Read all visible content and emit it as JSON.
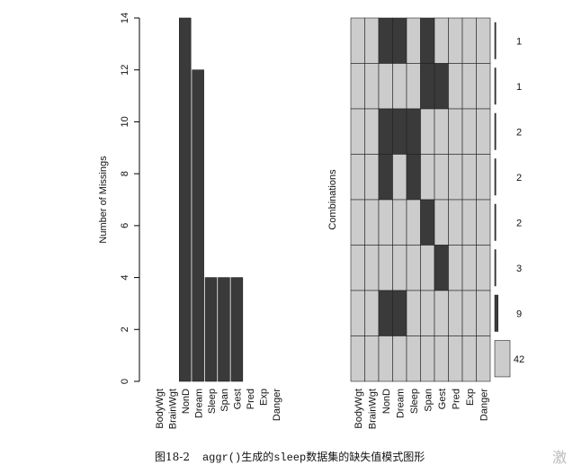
{
  "chart_data": [
    {
      "type": "bar",
      "ylabel": "Number of Missings",
      "categories": [
        "BodyWgt",
        "BrainWgt",
        "NonD",
        "Dream",
        "Sleep",
        "Span",
        "Gest",
        "Pred",
        "Exp",
        "Danger"
      ],
      "values": [
        0,
        0,
        14,
        12,
        4,
        4,
        4,
        0,
        0,
        0
      ],
      "color": "#3a3a3a",
      "ylim": [
        0,
        14
      ],
      "yticks": [
        0,
        2,
        4,
        6,
        8,
        10,
        12,
        14
      ]
    },
    {
      "type": "combinations",
      "ylabel": "Combinations",
      "categories": [
        "BodyWgt",
        "BrainWgt",
        "NonD",
        "Dream",
        "Sleep",
        "Span",
        "Gest",
        "Pred",
        "Exp",
        "Danger"
      ],
      "missing_color": "#3a3a3a",
      "present_color": "#cccccc",
      "rows": [
        {
          "pattern": [
            0,
            0,
            1,
            1,
            0,
            1,
            0,
            0,
            0,
            0
          ],
          "count": 1
        },
        {
          "pattern": [
            0,
            0,
            0,
            0,
            0,
            1,
            1,
            0,
            0,
            0
          ],
          "count": 1
        },
        {
          "pattern": [
            0,
            0,
            1,
            1,
            1,
            0,
            0,
            0,
            0,
            0
          ],
          "count": 2
        },
        {
          "pattern": [
            0,
            0,
            1,
            0,
            1,
            0,
            0,
            0,
            0,
            0
          ],
          "count": 2
        },
        {
          "pattern": [
            0,
            0,
            0,
            0,
            0,
            1,
            0,
            0,
            0,
            0
          ],
          "count": 2
        },
        {
          "pattern": [
            0,
            0,
            0,
            0,
            0,
            0,
            1,
            0,
            0,
            0
          ],
          "count": 3
        },
        {
          "pattern": [
            0,
            0,
            1,
            1,
            0,
            0,
            0,
            0,
            0,
            0
          ],
          "count": 9
        },
        {
          "pattern": [
            0,
            0,
            0,
            0,
            0,
            0,
            0,
            0,
            0,
            0
          ],
          "count": 42
        }
      ]
    }
  ],
  "caption": {
    "figure": "图18-2",
    "code": "aggr()",
    "text1": "生成的",
    "dataset": "sleep",
    "text2": "数据集的缺失值模式图形"
  },
  "watermark": "激"
}
